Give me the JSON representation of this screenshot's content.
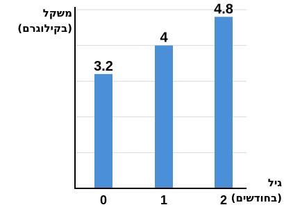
{
  "chart_data": {
    "type": "bar",
    "categories": [
      "0",
      "1",
      "2"
    ],
    "values": [
      3.2,
      4,
      4.8
    ],
    "value_labels": [
      "3.2",
      "4",
      "4.8"
    ],
    "ylabel_line1": "משקל",
    "ylabel_line2": "(בקילוגרם)",
    "xlabel_line1": "גיל",
    "xlabel_line2": "(בחודשים)",
    "ylim": [
      0,
      5
    ],
    "grid": true,
    "bar_color": "#4a90d9"
  }
}
